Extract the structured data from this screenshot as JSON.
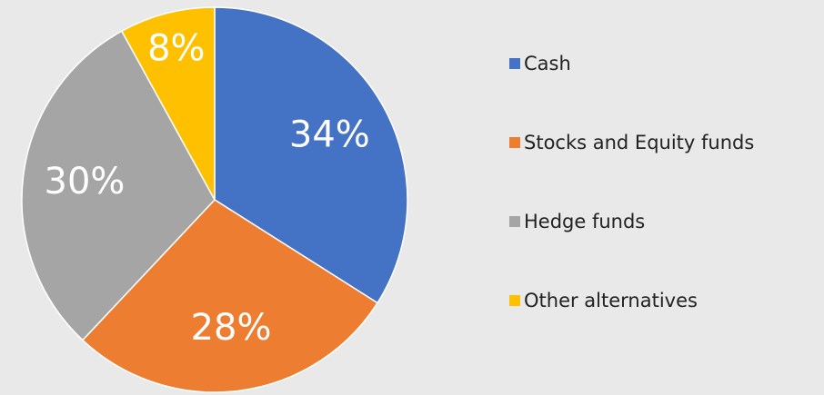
{
  "chart_data": {
    "type": "pie",
    "categories": [
      "Cash",
      "Stocks and Equity funds",
      "Hedge funds",
      "Other alternatives"
    ],
    "values": [
      34,
      28,
      30,
      8
    ],
    "value_labels": [
      "34%",
      "28%",
      "30%",
      "8%"
    ],
    "colors": [
      "#4472c4",
      "#ed7d31",
      "#a5a5a5",
      "#ffc000"
    ],
    "legend": "right"
  }
}
